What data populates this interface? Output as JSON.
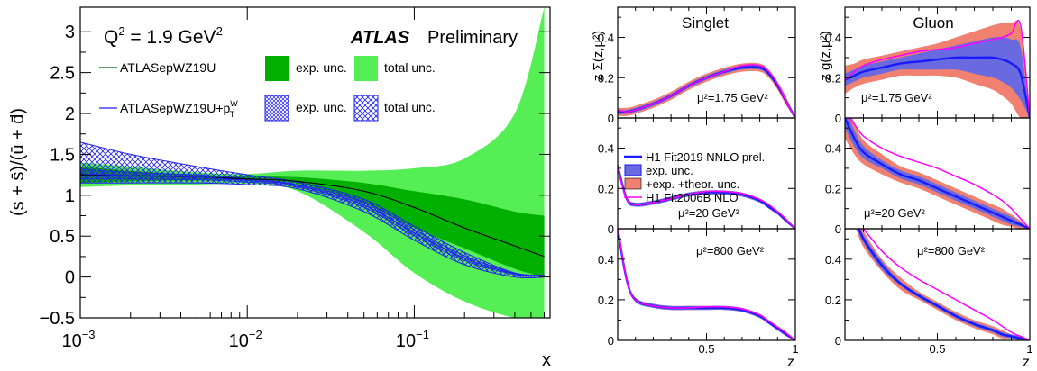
{
  "colors": {
    "atlas_fill": "#33cc33",
    "atlas_exp": "#00b000",
    "atlas_total": "#55ee55",
    "atlas_line": "#006600",
    "ptw_line": "#2222ee",
    "h1_line": "#1a1aff",
    "h1_exp": "#6a6ae0",
    "h1_theor": "#f08070",
    "h1_old": "#ff00ff"
  },
  "chart_data": [
    {
      "type": "area",
      "title": "",
      "text": {
        "q2": "Q",
        "q2sup": "2",
        "q2val": " = 1.9 GeV",
        "q2valsup": "2",
        "atlas": "ATLAS",
        "prelim": "Preliminary",
        "ylabel": "(s + s̄)/(ū + d̄)",
        "xlabel": "x",
        "legend1": "ATLASepWZ19U",
        "legend2_main": "ATLASepWZ19U+p",
        "legend2_sup": "W",
        "legend2_sub": "T",
        "exp": "exp. unc.",
        "total": "total unc."
      },
      "x_scale": "log",
      "xlim": [
        0.001,
        0.65
      ],
      "ylim": [
        -0.5,
        3.3
      ],
      "y_ticks": [
        -0.5,
        0,
        0.5,
        1,
        1.5,
        2,
        2.5,
        3
      ],
      "y_tick_labels": [
        "−0.5",
        "0",
        "0.5",
        "1",
        "1.5",
        "2",
        "2.5",
        "3"
      ],
      "x_ticks": [
        0.001,
        0.01,
        0.1
      ],
      "x_tick_labels": [
        [
          "10",
          "−3"
        ],
        [
          "10",
          "−2"
        ],
        [
          "10",
          "−1"
        ]
      ],
      "x": [
        0.001,
        0.002,
        0.005,
        0.01,
        0.02,
        0.05,
        0.1,
        0.2,
        0.4,
        0.6
      ],
      "series": [
        {
          "name": "ATLASepWZ19U",
          "band": "total",
          "lower": [
            1.1,
            1.12,
            1.13,
            1.14,
            1.05,
            0.55,
            0.05,
            -0.3,
            -0.5,
            -0.5
          ],
          "upper": [
            1.4,
            1.35,
            1.28,
            1.26,
            1.3,
            1.3,
            1.33,
            1.45,
            2.0,
            3.3
          ]
        },
        {
          "name": "ATLASepWZ19U",
          "band": "exp",
          "lower": [
            1.15,
            1.17,
            1.18,
            1.18,
            1.14,
            0.9,
            0.6,
            0.35,
            0.1,
            0.0
          ],
          "upper": [
            1.35,
            1.3,
            1.25,
            1.23,
            1.22,
            1.15,
            1.05,
            0.95,
            0.8,
            0.75
          ]
        },
        {
          "name": "ATLASepWZ19U",
          "band": "central",
          "values": [
            1.25,
            1.24,
            1.22,
            1.2,
            1.17,
            1.05,
            0.85,
            0.6,
            0.38,
            0.25
          ]
        },
        {
          "name": "ATLASepWZ19U+pT^W",
          "band": "total",
          "lower": [
            1.15,
            1.15,
            1.15,
            1.13,
            1.08,
            0.8,
            0.45,
            0.15,
            0.0,
            0.0
          ],
          "upper": [
            1.65,
            1.5,
            1.35,
            1.25,
            1.16,
            0.95,
            0.62,
            0.3,
            0.05,
            0.02
          ]
        },
        {
          "name": "ATLASepWZ19U+pT^W",
          "band": "exp",
          "lower": [
            1.2,
            1.2,
            1.19,
            1.16,
            1.1,
            0.85,
            0.5,
            0.2,
            0.03,
            0.01
          ],
          "upper": [
            1.32,
            1.28,
            1.25,
            1.2,
            1.13,
            0.92,
            0.58,
            0.26,
            0.05,
            0.02
          ]
        },
        {
          "name": "ATLASepWZ19U+pT^W",
          "band": "central",
          "values": [
            1.26,
            1.24,
            1.22,
            1.18,
            1.12,
            0.88,
            0.54,
            0.23,
            0.04,
            0.015
          ]
        }
      ]
    },
    {
      "type": "line",
      "panel_titles": [
        "Singlet",
        "Gluon"
      ],
      "ylabels": [
        "z Σ(z,μ²)",
        "z g(z,μ²)"
      ],
      "xlabel": "z",
      "x_ticks": [
        0.5,
        1
      ],
      "x_tick_labels": [
        "0.5",
        "1"
      ],
      "y_ticks": [
        0,
        0.2,
        0.4
      ],
      "y_tick_labels": [
        "0",
        "0.2",
        "0.4"
      ],
      "scales": [
        "μ²=1.75 GeV²",
        "μ²=20 GeV²",
        "μ²=800 GeV²"
      ],
      "legend": [
        "H1 Fit2019 NNLO prel.",
        "exp. unc.",
        "+exp. +theor. unc.",
        "H1 Fit2006B NLO"
      ],
      "z": [
        0.0,
        0.05,
        0.1,
        0.2,
        0.3,
        0.4,
        0.5,
        0.6,
        0.7,
        0.8,
        0.85,
        0.9,
        0.95,
        1.0
      ],
      "panels": [
        {
          "name": "singlet-1.75",
          "fit2019": [
            0.03,
            0.03,
            0.04,
            0.07,
            0.11,
            0.16,
            0.2,
            0.23,
            0.25,
            0.25,
            0.22,
            0.16,
            0.08,
            0.0
          ],
          "exp_width": [
            0.01,
            0.01,
            0.01,
            0.01,
            0.01,
            0.01,
            0.01,
            0.01,
            0.01,
            0.01,
            0.01,
            0.01,
            0.01,
            0.0
          ],
          "theor_width": [
            0.02,
            0.02,
            0.02,
            0.02,
            0.02,
            0.02,
            0.02,
            0.02,
            0.02,
            0.02,
            0.02,
            0.02,
            0.02,
            0.0
          ],
          "fit2006": [
            0.04,
            0.03,
            0.04,
            0.07,
            0.11,
            0.16,
            0.2,
            0.23,
            0.26,
            0.26,
            0.23,
            0.17,
            0.08,
            0.0
          ]
        },
        {
          "name": "gluon-1.75",
          "fit2019": [
            0.19,
            0.21,
            0.23,
            0.25,
            0.27,
            0.28,
            0.29,
            0.3,
            0.3,
            0.3,
            0.29,
            0.27,
            0.22,
            0.0
          ],
          "exp_width": [
            0.03,
            0.03,
            0.03,
            0.03,
            0.03,
            0.04,
            0.05,
            0.06,
            0.08,
            0.1,
            0.11,
            0.12,
            0.13,
            0.0
          ],
          "theor_width": [
            0.07,
            0.06,
            0.06,
            0.06,
            0.06,
            0.07,
            0.08,
            0.1,
            0.13,
            0.16,
            0.18,
            0.2,
            0.22,
            0.0
          ],
          "fit2006": [
            0.19,
            0.23,
            0.26,
            0.29,
            0.31,
            0.33,
            0.34,
            0.35,
            0.37,
            0.39,
            0.4,
            0.42,
            0.46,
            0.0
          ]
        },
        {
          "name": "singlet-20",
          "fit2019": [
            0.31,
            0.15,
            0.12,
            0.13,
            0.15,
            0.17,
            0.18,
            0.18,
            0.17,
            0.14,
            0.11,
            0.08,
            0.04,
            0.0
          ],
          "exp_width": [
            0.01,
            0.01,
            0.01,
            0.01,
            0.01,
            0.01,
            0.01,
            0.01,
            0.01,
            0.01,
            0.01,
            0.01,
            0.01,
            0.0
          ],
          "theor_width": [
            0.02,
            0.01,
            0.01,
            0.01,
            0.01,
            0.01,
            0.01,
            0.01,
            0.01,
            0.01,
            0.01,
            0.01,
            0.01,
            0.0
          ],
          "fit2006": [
            0.3,
            0.15,
            0.12,
            0.13,
            0.15,
            0.17,
            0.185,
            0.185,
            0.175,
            0.145,
            0.12,
            0.085,
            0.045,
            0.0
          ]
        },
        {
          "name": "gluon-20",
          "fit2019": [
            0.55,
            0.45,
            0.38,
            0.32,
            0.27,
            0.24,
            0.2,
            0.16,
            0.12,
            0.08,
            0.06,
            0.04,
            0.02,
            0.0
          ],
          "exp_width": [
            0.05,
            0.04,
            0.03,
            0.02,
            0.02,
            0.02,
            0.02,
            0.02,
            0.02,
            0.02,
            0.02,
            0.02,
            0.01,
            0.0
          ],
          "theor_width": [
            0.1,
            0.08,
            0.06,
            0.05,
            0.04,
            0.04,
            0.04,
            0.04,
            0.04,
            0.04,
            0.04,
            0.03,
            0.02,
            0.0
          ],
          "fit2006": [
            0.58,
            0.52,
            0.46,
            0.4,
            0.36,
            0.33,
            0.3,
            0.26,
            0.22,
            0.17,
            0.14,
            0.1,
            0.05,
            0.0
          ]
        },
        {
          "name": "singlet-800",
          "fit2019": [
            0.55,
            0.3,
            0.2,
            0.17,
            0.16,
            0.16,
            0.16,
            0.16,
            0.15,
            0.12,
            0.09,
            0.06,
            0.03,
            0.0
          ],
          "exp_width": [
            0.01,
            0.01,
            0.01,
            0.01,
            0.01,
            0.01,
            0.01,
            0.01,
            0.01,
            0.01,
            0.01,
            0.01,
            0.01,
            0.0
          ],
          "theor_width": [
            0.02,
            0.01,
            0.01,
            0.01,
            0.01,
            0.01,
            0.01,
            0.01,
            0.01,
            0.01,
            0.01,
            0.01,
            0.01,
            0.0
          ],
          "fit2006": [
            0.56,
            0.3,
            0.2,
            0.17,
            0.16,
            0.16,
            0.165,
            0.165,
            0.155,
            0.125,
            0.095,
            0.065,
            0.035,
            0.0
          ]
        },
        {
          "name": "gluon-800",
          "fit2019": [
            0.6,
            0.6,
            0.5,
            0.37,
            0.28,
            0.22,
            0.17,
            0.12,
            0.08,
            0.05,
            0.03,
            0.02,
            0.01,
            0.0
          ],
          "exp_width": [
            0.02,
            0.02,
            0.02,
            0.02,
            0.01,
            0.01,
            0.01,
            0.01,
            0.01,
            0.01,
            0.01,
            0.01,
            0.01,
            0.0
          ],
          "theor_width": [
            0.04,
            0.04,
            0.04,
            0.03,
            0.03,
            0.02,
            0.02,
            0.02,
            0.02,
            0.02,
            0.02,
            0.01,
            0.01,
            0.0
          ],
          "fit2006": [
            0.6,
            0.6,
            0.55,
            0.44,
            0.36,
            0.3,
            0.25,
            0.2,
            0.15,
            0.1,
            0.07,
            0.04,
            0.02,
            0.0
          ]
        }
      ]
    }
  ]
}
